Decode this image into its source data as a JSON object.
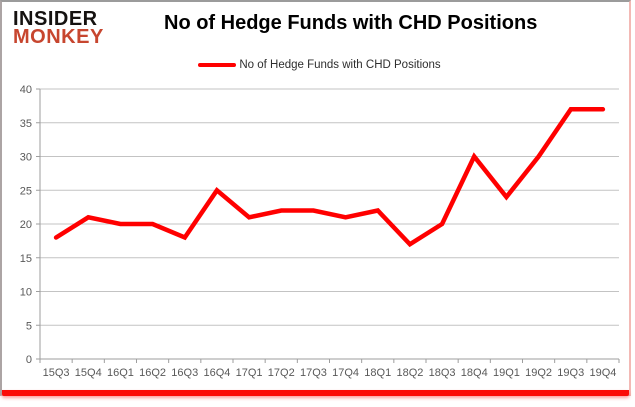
{
  "logo": {
    "line1": "INSIDER",
    "line2": "MONKEY",
    "color": "#c7462f"
  },
  "header": {
    "title": "No of Hedge Funds with CHD Positions"
  },
  "legend": {
    "label": "No of Hedge Funds with CHD Positions",
    "swatch_color": "#ff0000"
  },
  "chart_data": {
    "type": "line",
    "title": "No of Hedge Funds with CHD Positions",
    "categories": [
      "15Q3",
      "15Q4",
      "16Q1",
      "16Q2",
      "16Q3",
      "16Q4",
      "17Q1",
      "17Q2",
      "17Q3",
      "17Q4",
      "18Q1",
      "18Q2",
      "18Q3",
      "18Q4",
      "19Q1",
      "19Q2",
      "19Q3",
      "19Q4"
    ],
    "series": [
      {
        "name": "No of Hedge Funds with CHD Positions",
        "color": "#ff0000",
        "values": [
          18,
          21,
          20,
          20,
          18,
          25,
          21,
          22,
          22,
          21,
          22,
          17,
          20,
          30,
          24,
          30,
          37,
          37
        ]
      }
    ],
    "xlabel": "",
    "ylabel": "",
    "ylim": [
      0,
      40
    ],
    "ytick_step": 5,
    "yticks": [
      0,
      5,
      10,
      15,
      20,
      25,
      30,
      35,
      40
    ],
    "grid": true,
    "legend_position": "top-center",
    "gridline_color": "#c3c3c3",
    "axis_color": "#9e9e9e",
    "tick_label_color": "#595959"
  }
}
